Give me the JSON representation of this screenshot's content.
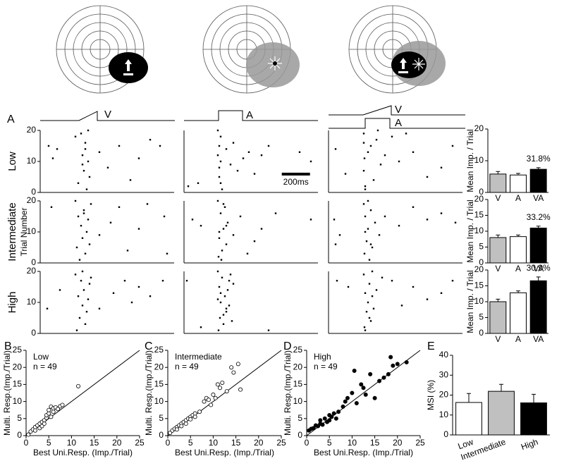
{
  "panel_labels": [
    "A",
    "B",
    "C",
    "D",
    "E"
  ],
  "stimulus_labels": [
    "V",
    "A",
    "V",
    "A"
  ],
  "row_labels": [
    "Low",
    "Intermediate",
    "High"
  ],
  "raster_ylabel": "Trial Number",
  "scale_bar": {
    "value": 200,
    "label": "200ms"
  },
  "chart_data": [
    {
      "type": "raster",
      "xlim": [
        0,
        950
      ],
      "ylim": [
        0,
        20
      ],
      "yticks": [
        0,
        10,
        20
      ],
      "x": [
        60,
        90,
        120,
        250,
        270,
        290,
        300,
        310,
        320,
        330,
        340,
        350,
        300,
        320,
        340,
        420,
        480,
        560,
        640,
        700,
        780,
        850
      ],
      "values": [
        15,
        11,
        14,
        18,
        3,
        19,
        12,
        7,
        16,
        1,
        10,
        5,
        9,
        14,
        20,
        13,
        8,
        15,
        4,
        11,
        17,
        15
      ]
    },
    {
      "type": "raster",
      "xlim": [
        0,
        950
      ],
      "ylim": [
        0,
        20
      ],
      "x": [
        100,
        240,
        250,
        260,
        250,
        270,
        240,
        260,
        300,
        330,
        350,
        380,
        420,
        460,
        500,
        550,
        600,
        250,
        260,
        900,
        820,
        30
      ],
      "values": [
        3,
        20,
        15,
        10,
        5,
        1,
        12,
        18,
        14,
        9,
        16,
        7,
        11,
        13,
        6,
        12,
        15,
        8,
        3,
        10,
        13,
        2
      ]
    },
    {
      "type": "raster",
      "xlim": [
        0,
        950
      ],
      "ylim": [
        0,
        20
      ],
      "x": [
        50,
        120,
        250,
        255,
        260,
        250,
        300,
        320,
        340,
        370,
        400,
        450,
        500,
        600,
        700,
        800,
        880,
        260,
        280,
        250,
        550,
        350
      ],
      "values": [
        14,
        6,
        19,
        11,
        2,
        7,
        15,
        4,
        17,
        9,
        12,
        18,
        10,
        13,
        5,
        8,
        15,
        1,
        13,
        16,
        19,
        20
      ]
    },
    {
      "type": "raster",
      "xlim": [
        0,
        950
      ],
      "ylim": [
        0,
        20
      ],
      "yticks": [
        0,
        10,
        20
      ],
      "x": [
        80,
        250,
        260,
        270,
        280,
        290,
        300,
        310,
        320,
        330,
        340,
        350,
        360,
        420,
        500,
        560,
        620,
        700,
        760,
        880,
        900,
        310
      ],
      "values": [
        18,
        20,
        5,
        15,
        1,
        12,
        8,
        17,
        3,
        10,
        14,
        6,
        19,
        9,
        13,
        18,
        4,
        11,
        19,
        15,
        3,
        16
      ]
    },
    {
      "type": "raster",
      "xlim": [
        0,
        950
      ],
      "ylim": [
        0,
        20
      ],
      "x": [
        60,
        120,
        240,
        245,
        250,
        260,
        270,
        280,
        290,
        300,
        310,
        350,
        400,
        450,
        500,
        550,
        650,
        250,
        265,
        280,
        300,
        900
      ],
      "values": [
        14,
        12,
        20,
        2,
        8,
        16,
        4,
        11,
        18,
        6,
        13,
        9,
        15,
        3,
        7,
        11,
        16,
        10,
        1,
        19,
        12,
        14
      ]
    },
    {
      "type": "raster",
      "xlim": [
        0,
        950
      ],
      "ylim": [
        0,
        20
      ],
      "x": [
        40,
        80,
        250,
        255,
        260,
        270,
        280,
        290,
        300,
        310,
        330,
        360,
        400,
        500,
        600,
        700,
        800,
        900,
        260,
        280,
        300,
        50
      ],
      "values": [
        14,
        9,
        19,
        3,
        15,
        7,
        11,
        1,
        17,
        5,
        13,
        9,
        15,
        12,
        18,
        14,
        16,
        13,
        10,
        20,
        6,
        6
      ]
    },
    {
      "type": "raster",
      "xlim": [
        0,
        950
      ],
      "ylim": [
        0,
        20
      ],
      "yticks": [
        0,
        10,
        20
      ],
      "x": [
        50,
        140,
        250,
        260,
        270,
        280,
        290,
        300,
        310,
        320,
        330,
        340,
        350,
        360,
        420,
        520,
        600,
        650,
        700,
        780,
        870,
        300
      ],
      "values": [
        8,
        14,
        19,
        1,
        12,
        5,
        17,
        9,
        14,
        3,
        7,
        11,
        16,
        18,
        8,
        13,
        17,
        10,
        15,
        12,
        17,
        20
      ]
    },
    {
      "type": "raster",
      "xlim": [
        0,
        950
      ],
      "ylim": [
        0,
        20
      ],
      "x": [
        20,
        120,
        240,
        245,
        250,
        255,
        260,
        270,
        280,
        290,
        300,
        310,
        320,
        330,
        340,
        350,
        240,
        260,
        280,
        300,
        320,
        600
      ],
      "values": [
        17,
        2,
        20,
        1,
        15,
        5,
        10,
        18,
        3,
        12,
        7,
        14,
        9,
        19,
        4,
        16,
        11,
        13,
        6,
        8,
        17,
        1
      ]
    },
    {
      "type": "raster",
      "xlim": [
        0,
        950
      ],
      "ylim": [
        0,
        20
      ],
      "x": [
        60,
        140,
        250,
        255,
        260,
        270,
        280,
        290,
        300,
        310,
        320,
        340,
        380,
        450,
        520,
        600,
        700,
        800,
        880,
        260,
        290,
        310
      ],
      "values": [
        17,
        15,
        19,
        2,
        13,
        7,
        10,
        16,
        4,
        12,
        8,
        14,
        18,
        17,
        9,
        15,
        11,
        13,
        17,
        1,
        5,
        20
      ]
    },
    {
      "type": "bar",
      "ylabel": "Mean Imp. / Trial",
      "annotation": "31.8%",
      "categories": [
        "V",
        "A",
        "VA"
      ],
      "values": [
        5.8,
        5.5,
        7.3
      ],
      "errors": [
        0.8,
        0.5,
        0.5
      ],
      "colors": [
        "#c0c0c0",
        "#ffffff",
        "#000000"
      ],
      "ylim": [
        0,
        20
      ],
      "yticks": [
        0,
        10,
        20
      ]
    },
    {
      "type": "bar",
      "ylabel": "Mean Imp. / Trial",
      "annotation": "33.2%",
      "categories": [
        "V",
        "A",
        "VA"
      ],
      "values": [
        8.0,
        8.3,
        11.0
      ],
      "errors": [
        0.8,
        0.5,
        0.6
      ],
      "colors": [
        "#c0c0c0",
        "#ffffff",
        "#000000"
      ],
      "ylim": [
        0,
        20
      ],
      "yticks": [
        0,
        5,
        10,
        15,
        20
      ]
    },
    {
      "type": "bar",
      "ylabel": "Mean Imp. / Trial",
      "annotation": "30.9%",
      "categories": [
        "V",
        "A",
        "VA"
      ],
      "values": [
        10.0,
        12.8,
        16.6
      ],
      "errors": [
        0.8,
        0.6,
        1.2
      ],
      "colors": [
        "#c0c0c0",
        "#ffffff",
        "#000000"
      ],
      "ylim": [
        0,
        20
      ],
      "yticks": [
        0,
        5,
        10,
        15,
        20
      ]
    },
    {
      "type": "scatter",
      "title": "Low",
      "note": "n = 49",
      "marker_fill": "#ffffff",
      "xlabel": "Best Uni.Resp. (Imp./Trial)",
      "ylabel": "Multi. Resp.(Imp./Trial)",
      "xlim": [
        0,
        25
      ],
      "ylim": [
        0,
        25
      ],
      "xticks": [
        0,
        5,
        10,
        15,
        20,
        25
      ],
      "yticks": [
        0,
        5,
        10,
        15,
        20,
        25
      ],
      "x": [
        0.5,
        1,
        1.5,
        2,
        2,
        2.5,
        3,
        3,
        3.5,
        3.5,
        4,
        4,
        4.5,
        4.5,
        5,
        5,
        5.5,
        5.5,
        6,
        6,
        6.5,
        7,
        7.5,
        8,
        11.5
      ],
      "values": [
        0.3,
        1.2,
        1.8,
        2.5,
        1.5,
        3,
        2.2,
        3.5,
        4,
        2.8,
        4.5,
        3.5,
        5.2,
        6,
        6.5,
        7.5,
        5.5,
        8.5,
        7,
        8,
        8.3,
        7.8,
        8.6,
        9,
        14.5
      ]
    },
    {
      "type": "scatter",
      "title": "Intermediate",
      "note": "n = 49",
      "marker_fill": "#ffffff",
      "xlabel": "Best Uni.Resp. (Imp./Trial)",
      "ylabel": "Multi. Resp.(Imp./Trial)",
      "xlim": [
        0,
        25
      ],
      "ylim": [
        0,
        25
      ],
      "xticks": [
        0,
        5,
        10,
        15,
        20,
        25
      ],
      "yticks": [
        0,
        5,
        10,
        15,
        20,
        25
      ],
      "x": [
        0.5,
        1,
        1.5,
        2,
        2,
        2.5,
        3,
        3,
        3.5,
        4,
        4,
        4.5,
        5,
        5,
        5.5,
        6,
        6,
        7,
        8,
        8.5,
        9,
        9.5,
        10,
        10.5,
        11,
        11.5,
        12,
        13,
        14,
        14.5,
        15.5,
        16
      ],
      "values": [
        0.8,
        1.5,
        2,
        2.5,
        1.8,
        3,
        3.5,
        2.8,
        4,
        4.5,
        3.5,
        5,
        5.5,
        4.8,
        6,
        6.5,
        5.5,
        7,
        10,
        11,
        10.5,
        9,
        12,
        11,
        15,
        14,
        15.5,
        13,
        20,
        18.5,
        21,
        13.5
      ]
    },
    {
      "type": "scatter",
      "title": "High",
      "note": "n = 49",
      "marker_fill": "#000000",
      "xlabel": "Best Uni.Resp. (Imp./Trial)",
      "ylabel": "Multi. Resp.(Imp./Trial)",
      "xlim": [
        0,
        25
      ],
      "ylim": [
        0,
        25
      ],
      "xticks": [
        0,
        5,
        10,
        15,
        20,
        25
      ],
      "yticks": [
        0,
        5,
        10,
        15,
        20,
        25
      ],
      "x": [
        0.5,
        1,
        1.5,
        2,
        2.5,
        3,
        3,
        3.5,
        4,
        4.5,
        5,
        5,
        5.5,
        6,
        6.5,
        7,
        8,
        8.5,
        9,
        10,
        10.5,
        11,
        12,
        12.5,
        13,
        14,
        15,
        16,
        17,
        18,
        18.5,
        19,
        20,
        22
      ],
      "values": [
        1.5,
        2,
        2.2,
        3,
        2.8,
        3.5,
        4.5,
        3.2,
        5,
        4,
        6,
        4.5,
        5.5,
        6.5,
        5,
        7,
        8.5,
        10,
        11,
        12.5,
        19,
        9.5,
        15,
        14,
        12,
        18,
        11,
        16,
        17,
        18,
        23,
        20.5,
        21,
        21.5
      ]
    },
    {
      "type": "bar",
      "ylabel": "MSI (%)",
      "categories": [
        "Low",
        "Intermediate",
        "High"
      ],
      "values": [
        16.3,
        21.9,
        16.1
      ],
      "errors": [
        4.5,
        3.5,
        4.3
      ],
      "colors": [
        "#ffffff",
        "#c0c0c0",
        "#000000"
      ],
      "ylim": [
        0,
        40
      ],
      "yticks": [
        0,
        10,
        20,
        30,
        40
      ]
    }
  ]
}
